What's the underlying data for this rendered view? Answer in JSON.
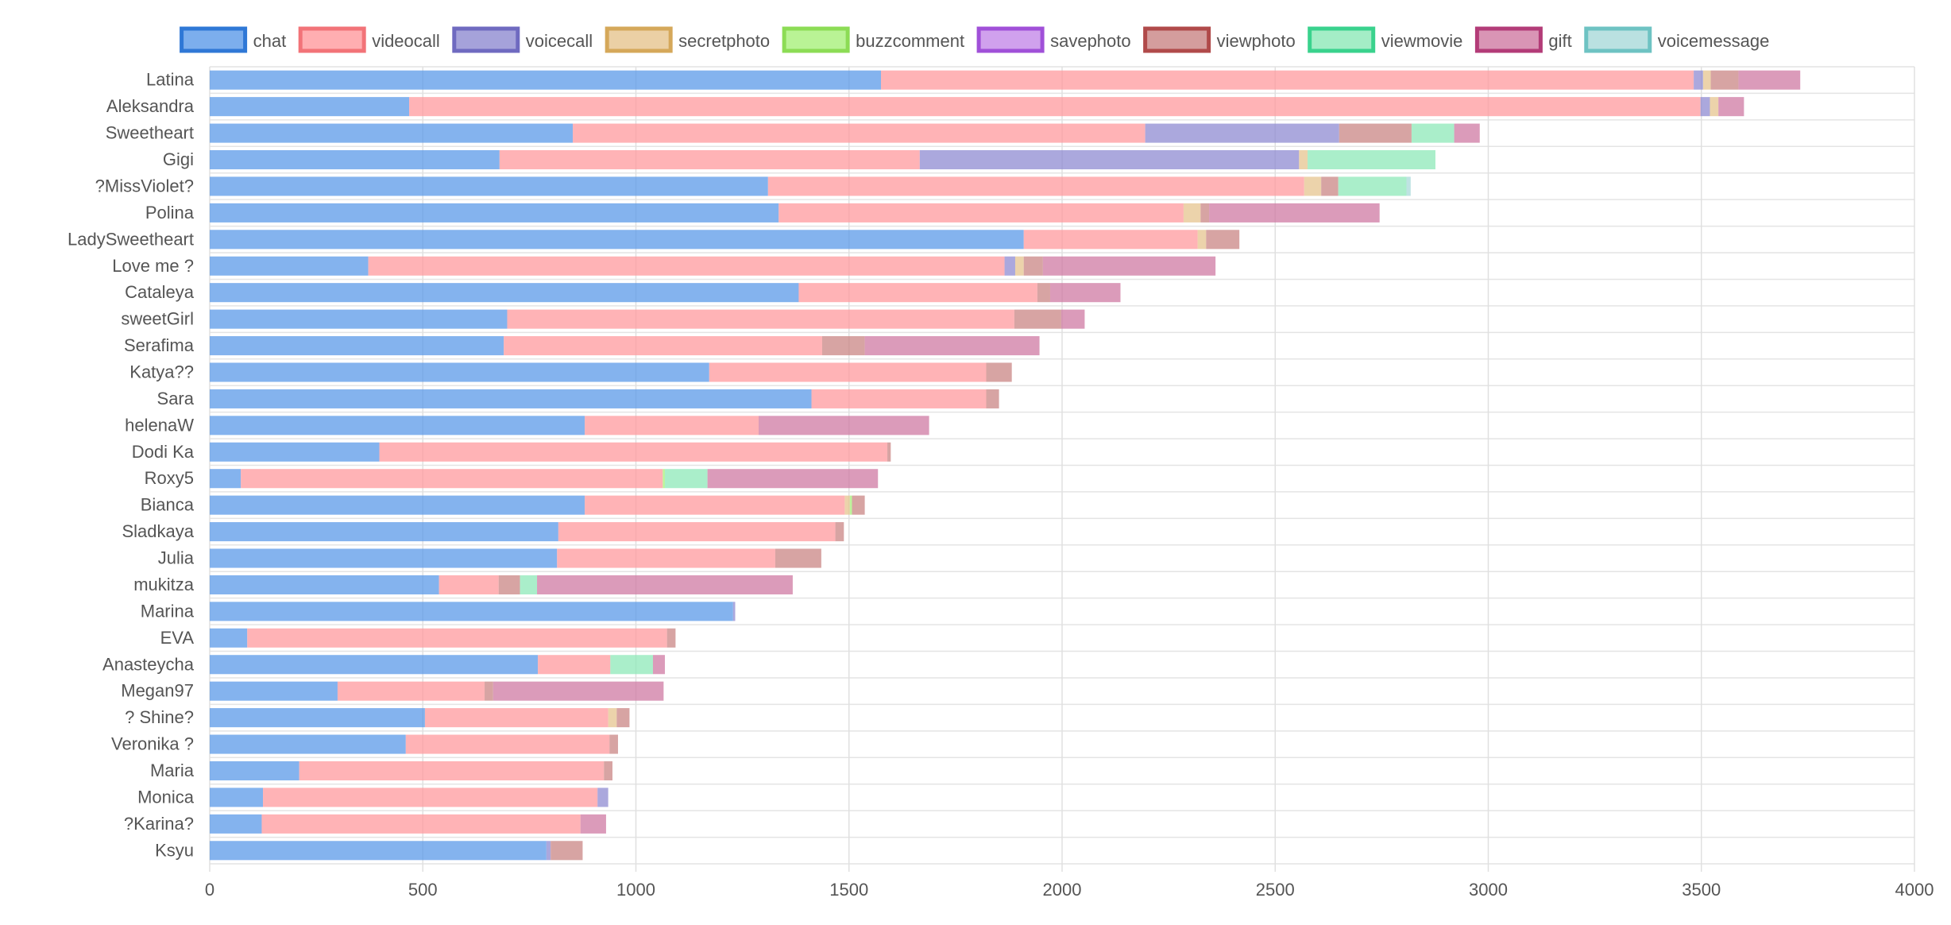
{
  "chart_data": {
    "type": "bar",
    "orientation": "horizontal",
    "stacked": true,
    "legend_position": "top",
    "grid": true,
    "xlim": [
      0,
      4000
    ],
    "x_ticks": [
      "0",
      "500",
      "1000",
      "1500",
      "2000",
      "2500",
      "3000",
      "3500",
      "4000"
    ],
    "categories": [
      "Latina",
      "Aleksandra",
      "Sweetheart",
      "Gigi",
      "?MissViolet?",
      "Polina",
      "LadySweetheart",
      "Love me ?",
      "Cataleya",
      "sweetGirl",
      "Serafima",
      "Katya??",
      "Sara",
      "helenaW",
      "Dodi Ka",
      "Roxy5",
      "Bianca",
      "Sladkaya",
      "Julia",
      "mukitza",
      "Marina",
      "EVA",
      "Anasteycha",
      "Megan97",
      "? Shine?",
      "Veronika ?",
      "Maria",
      "Monica",
      "?Karina?",
      "Ksyu"
    ],
    "series": [
      {
        "name": "chat",
        "color": "#5b9ae8",
        "border": "#2f78d6",
        "values": [
          1575,
          468,
          852,
          680,
          1310,
          1335,
          1910,
          372,
          1382,
          698,
          690,
          1172,
          1412,
          880,
          398,
          73,
          880,
          818,
          815,
          538,
          1228,
          88,
          770,
          300,
          505,
          460,
          210,
          125,
          122,
          790
        ]
      },
      {
        "name": "videocall",
        "color": "#ff9a9e",
        "border": "#f27378",
        "values": [
          1907,
          3030,
          1343,
          986,
          1258,
          950,
          408,
          1493,
          560,
          1190,
          747,
          650,
          410,
          408,
          1192,
          990,
          610,
          650,
          512,
          140,
          0,
          985,
          170,
          345,
          430,
          478,
          715,
          785,
          748,
          0
        ]
      },
      {
        "name": "voicecall",
        "color": "#8f8bd1",
        "border": "#6f6ac0",
        "values": [
          22,
          22,
          455,
          890,
          0,
          0,
          0,
          25,
          0,
          0,
          0,
          0,
          0,
          0,
          0,
          0,
          0,
          0,
          0,
          0,
          5,
          0,
          0,
          0,
          0,
          0,
          0,
          25,
          0,
          10
        ]
      },
      {
        "name": "secretphoto",
        "color": "#e6c48f",
        "border": "#d5a85a",
        "values": [
          18,
          20,
          0,
          20,
          40,
          40,
          20,
          20,
          0,
          0,
          0,
          0,
          0,
          0,
          0,
          0,
          12,
          0,
          0,
          0,
          0,
          0,
          0,
          0,
          20,
          0,
          0,
          0,
          0,
          0
        ]
      },
      {
        "name": "buzzcomment",
        "color": "#a7f07b",
        "border": "#8cdc55",
        "values": [
          0,
          0,
          0,
          0,
          0,
          0,
          0,
          0,
          0,
          0,
          0,
          0,
          0,
          0,
          0,
          5,
          5,
          0,
          0,
          0,
          0,
          0,
          0,
          0,
          0,
          0,
          0,
          0,
          0,
          0
        ]
      },
      {
        "name": "savephoto",
        "color": "#c48ae8",
        "border": "#a050d8",
        "values": [
          0,
          0,
          0,
          0,
          0,
          0,
          0,
          0,
          0,
          0,
          0,
          0,
          0,
          0,
          0,
          0,
          0,
          0,
          0,
          0,
          0,
          0,
          0,
          0,
          0,
          0,
          0,
          0,
          0,
          0
        ]
      },
      {
        "name": "viewphoto",
        "color": "#c98584",
        "border": "#b04a4a",
        "values": [
          65,
          0,
          170,
          0,
          40,
          20,
          78,
          45,
          30,
          110,
          100,
          60,
          30,
          0,
          8,
          0,
          30,
          20,
          108,
          50,
          0,
          20,
          0,
          20,
          30,
          20,
          20,
          0,
          0,
          75
        ]
      },
      {
        "name": "viewmovie",
        "color": "#8de8b8",
        "border": "#3ad28d",
        "values": [
          0,
          0,
          100,
          300,
          160,
          0,
          0,
          0,
          0,
          0,
          0,
          0,
          0,
          0,
          0,
          100,
          0,
          0,
          0,
          40,
          0,
          0,
          100,
          0,
          0,
          0,
          0,
          0,
          0,
          0
        ]
      },
      {
        "name": "gift",
        "color": "#cf7aa3",
        "border": "#b33c78",
        "values": [
          145,
          60,
          60,
          0,
          0,
          400,
          0,
          405,
          165,
          55,
          410,
          0,
          0,
          400,
          0,
          400,
          0,
          0,
          0,
          600,
          0,
          0,
          28,
          400,
          0,
          0,
          0,
          0,
          60,
          0
        ]
      },
      {
        "name": "voicemessage",
        "color": "#a9d9d9",
        "border": "#6ec3c3",
        "values": [
          0,
          0,
          0,
          0,
          10,
          0,
          0,
          0,
          0,
          0,
          0,
          0,
          0,
          0,
          0,
          0,
          0,
          0,
          0,
          0,
          0,
          0,
          0,
          0,
          0,
          0,
          0,
          0,
          0,
          0
        ]
      }
    ]
  }
}
